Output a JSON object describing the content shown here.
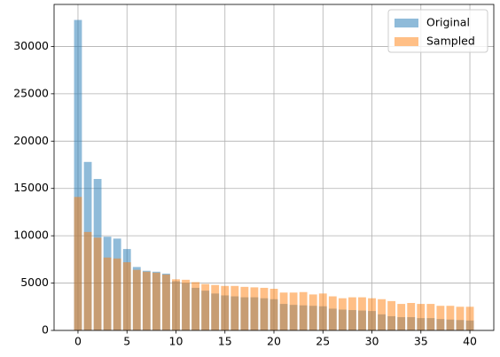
{
  "chart_data": {
    "type": "bar",
    "x": [
      0,
      1,
      2,
      3,
      4,
      5,
      6,
      7,
      8,
      9,
      10,
      11,
      12,
      13,
      14,
      15,
      16,
      17,
      18,
      19,
      20,
      21,
      22,
      23,
      24,
      25,
      26,
      27,
      28,
      29,
      30,
      31,
      32,
      33,
      34,
      35,
      36,
      37,
      38,
      39,
      40
    ],
    "series": [
      {
        "name": "Original",
        "color": "#1f77b4",
        "values": [
          32800,
          17800,
          16000,
          9900,
          9700,
          8600,
          6700,
          6300,
          6200,
          6000,
          5200,
          5000,
          4500,
          4200,
          3900,
          3700,
          3600,
          3500,
          3500,
          3400,
          3300,
          2800,
          2700,
          2650,
          2600,
          2550,
          2300,
          2200,
          2150,
          2100,
          2050,
          1700,
          1500,
          1400,
          1400,
          1300,
          1300,
          1200,
          1150,
          1100,
          1050
        ]
      },
      {
        "name": "Sampled",
        "color": "#ff7f0e",
        "values": [
          14100,
          10400,
          9800,
          7700,
          7600,
          7200,
          6400,
          6200,
          6100,
          5900,
          5400,
          5350,
          5100,
          4900,
          4800,
          4700,
          4700,
          4600,
          4550,
          4500,
          4400,
          4000,
          4000,
          4050,
          3800,
          3900,
          3600,
          3400,
          3500,
          3500,
          3400,
          3300,
          3100,
          2800,
          2900,
          2800,
          2800,
          2600,
          2600,
          2500,
          2500
        ]
      }
    ],
    "alpha": 0.5,
    "bar_width": 0.8,
    "xlim": [
      -2.44,
      42.44
    ],
    "xticks": [
      0,
      5,
      10,
      15,
      20,
      25,
      30,
      35,
      40
    ],
    "ylim": [
      0,
      34440
    ],
    "yticks": [
      0,
      5000,
      10000,
      15000,
      20000,
      25000,
      30000
    ],
    "grid": true,
    "legend": "upper right"
  }
}
